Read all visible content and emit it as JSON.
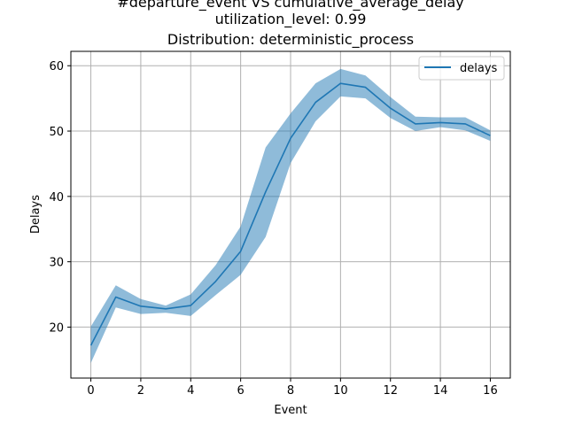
{
  "chart_data": {
    "type": "line",
    "title_lines": [
      "#departure_event VS cumulative_average_delay",
      "utilization_level: 0.99",
      "Distribution: deterministic_process"
    ],
    "xlabel": "Event",
    "ylabel": "Delays",
    "xlim": [
      -0.8,
      16.8
    ],
    "ylim": [
      12.2,
      62.2
    ],
    "x_ticks": [
      0,
      2,
      4,
      6,
      8,
      10,
      12,
      14,
      16
    ],
    "y_ticks": [
      20,
      30,
      40,
      50,
      60
    ],
    "grid": true,
    "legend_position": "top-right",
    "series": [
      {
        "name": "delays",
        "color": "#1f77b4",
        "band_color": "#1f77b4",
        "x": [
          0,
          1,
          2,
          3,
          4,
          5,
          6,
          7,
          8,
          9,
          10,
          11,
          12,
          13,
          14,
          15,
          16
        ],
        "y": [
          17.2,
          24.6,
          23.2,
          22.8,
          23.3,
          27.0,
          31.6,
          40.7,
          48.9,
          54.4,
          57.3,
          56.7,
          53.5,
          51.1,
          51.3,
          51.1,
          49.3
        ],
        "lower": [
          14.5,
          23.0,
          22.0,
          22.2,
          21.7,
          24.9,
          28.0,
          33.8,
          45.1,
          51.5,
          55.3,
          55.0,
          52.0,
          50.0,
          50.6,
          50.1,
          48.5
        ],
        "upper": [
          20.1,
          26.4,
          24.3,
          23.3,
          25.0,
          29.5,
          35.4,
          47.5,
          52.7,
          57.3,
          59.5,
          58.5,
          55.2,
          52.2,
          52.1,
          52.1,
          50.1
        ]
      }
    ]
  }
}
